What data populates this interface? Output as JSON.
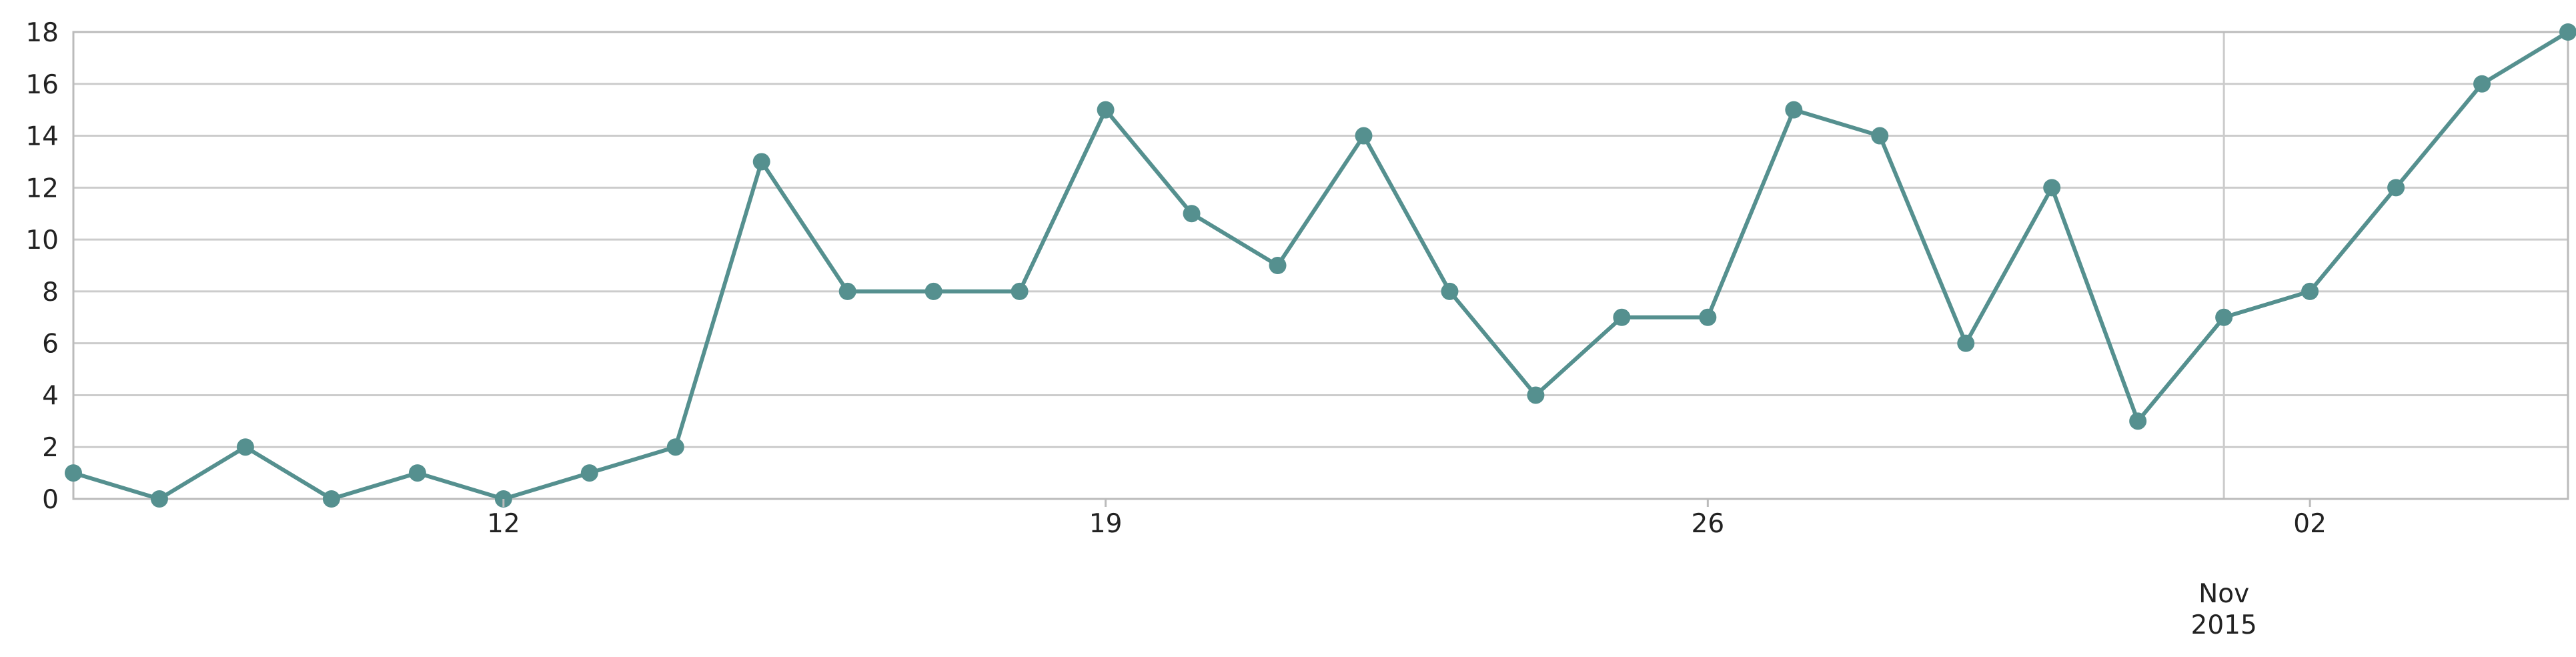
{
  "chart_data": {
    "type": "line",
    "title": "",
    "xlabel": "",
    "ylabel": "",
    "grid": true,
    "legend": "none",
    "x_start": "2015-10-07",
    "x": [
      "2015-10-07",
      "2015-10-08",
      "2015-10-09",
      "2015-10-10",
      "2015-10-11",
      "2015-10-12",
      "2015-10-13",
      "2015-10-14",
      "2015-10-15",
      "2015-10-16",
      "2015-10-17",
      "2015-10-18",
      "2015-10-19",
      "2015-10-20",
      "2015-10-21",
      "2015-10-22",
      "2015-10-23",
      "2015-10-24",
      "2015-10-25",
      "2015-10-26",
      "2015-10-27",
      "2015-10-28",
      "2015-10-29",
      "2015-10-30",
      "2015-10-31",
      "2015-11-01",
      "2015-11-02",
      "2015-11-03",
      "2015-11-04",
      "2015-11-05"
    ],
    "series": [
      {
        "values": [
          1,
          0,
          2,
          0,
          1,
          0,
          1,
          2,
          13,
          8,
          8,
          8,
          15,
          11,
          9,
          14,
          8,
          4,
          7,
          7,
          15,
          14,
          6,
          12,
          3,
          7,
          8,
          12,
          16,
          18
        ]
      }
    ],
    "ylim": [
      0,
      18
    ],
    "xlim": [
      "2015-10-07",
      "2015-11-05"
    ],
    "y_ticks": [
      "0",
      "2",
      "4",
      "6",
      "8",
      "10",
      "12",
      "14",
      "16",
      "18"
    ],
    "x_ticks": [
      {
        "date": "2015-10-12",
        "label": "12"
      },
      {
        "date": "2015-10-19",
        "label": "19"
      },
      {
        "date": "2015-10-26",
        "label": "26"
      },
      {
        "date": "2015-11-02",
        "label": "02"
      }
    ],
    "major_tick": {
      "date": "2015-11-01",
      "label_line1": "Nov",
      "label_line2": "2015"
    },
    "colors": {
      "line": "#55908f",
      "grid": "#cccccc",
      "axis": "#bbbbbb",
      "text": "#222222"
    }
  }
}
